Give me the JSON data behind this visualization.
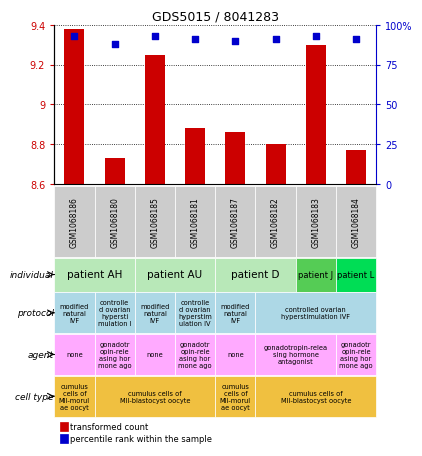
{
  "title": "GDS5015 / 8041283",
  "samples": [
    "GSM1068186",
    "GSM1068180",
    "GSM1068185",
    "GSM1068181",
    "GSM1068187",
    "GSM1068182",
    "GSM1068183",
    "GSM1068184"
  ],
  "transformed_count": [
    9.38,
    8.73,
    9.25,
    8.88,
    8.86,
    8.8,
    9.3,
    8.77
  ],
  "percentile_rank": [
    93,
    88,
    93,
    91,
    90,
    91,
    93,
    91
  ],
  "ylim": [
    8.6,
    9.4
  ],
  "yticks": [
    8.6,
    8.8,
    9.0,
    9.2,
    9.4
  ],
  "y2lim": [
    0,
    100
  ],
  "y2ticks": [
    0,
    25,
    50,
    75,
    100
  ],
  "bar_color": "#cc0000",
  "dot_color": "#0000cc",
  "individual_labels": [
    [
      "patient AH",
      0,
      2
    ],
    [
      "patient AU",
      2,
      4
    ],
    [
      "patient D",
      4,
      6
    ],
    [
      "patient J",
      6,
      7
    ],
    [
      "patient L",
      7,
      8
    ]
  ],
  "individual_colors_map": {
    "patient AH": "#b8e8b8",
    "patient AU": "#b8e8b8",
    "patient D": "#b8e8b8",
    "patient J": "#55cc55",
    "patient L": "#00dd55"
  },
  "protocol_data": [
    {
      "label": "modified\nnatural\nIVF",
      "start": 0,
      "end": 1,
      "color": "#add8e6"
    },
    {
      "label": "controlle\nd ovarian\nhypersti\nmulation I",
      "start": 1,
      "end": 2,
      "color": "#add8e6"
    },
    {
      "label": "modified\nnatural\nIVF",
      "start": 2,
      "end": 3,
      "color": "#add8e6"
    },
    {
      "label": "controlle\nd ovarian\nhyperstim\nulation IV",
      "start": 3,
      "end": 4,
      "color": "#add8e6"
    },
    {
      "label": "modified\nnatural\nIVF",
      "start": 4,
      "end": 5,
      "color": "#add8e6"
    },
    {
      "label": "controlled ovarian\nhyperstimulation IVF",
      "start": 5,
      "end": 8,
      "color": "#add8e6"
    }
  ],
  "agent_data": [
    {
      "label": "none",
      "start": 0,
      "end": 1,
      "color": "#ffaaff"
    },
    {
      "label": "gonadotr\nopin-rele\nasing hor\nmone ago",
      "start": 1,
      "end": 2,
      "color": "#ffaaff"
    },
    {
      "label": "none",
      "start": 2,
      "end": 3,
      "color": "#ffaaff"
    },
    {
      "label": "gonadotr\nopin-rele\nasing hor\nmone ago",
      "start": 3,
      "end": 4,
      "color": "#ffaaff"
    },
    {
      "label": "none",
      "start": 4,
      "end": 5,
      "color": "#ffaaff"
    },
    {
      "label": "gonadotropin-relea\nsing hormone\nantagonist",
      "start": 5,
      "end": 7,
      "color": "#ffaaff"
    },
    {
      "label": "gonadotr\nopin-rele\nasing hor\nmone ago",
      "start": 7,
      "end": 8,
      "color": "#ffaaff"
    }
  ],
  "celltype_data": [
    {
      "label": "cumulus\ncells of\nMII-morul\nae oocyt",
      "start": 0,
      "end": 1,
      "color": "#f0c040"
    },
    {
      "label": "cumulus cells of\nMII-blastocyst oocyte",
      "start": 1,
      "end": 4,
      "color": "#f0c040"
    },
    {
      "label": "cumulus\ncells of\nMII-morul\nae oocyt",
      "start": 4,
      "end": 5,
      "color": "#f0c040"
    },
    {
      "label": "cumulus cells of\nMII-blastocyst oocyte",
      "start": 5,
      "end": 8,
      "color": "#f0c040"
    }
  ],
  "row_labels": [
    "individual",
    "protocol",
    "agent",
    "cell type"
  ],
  "sample_bg_color": "#cccccc"
}
